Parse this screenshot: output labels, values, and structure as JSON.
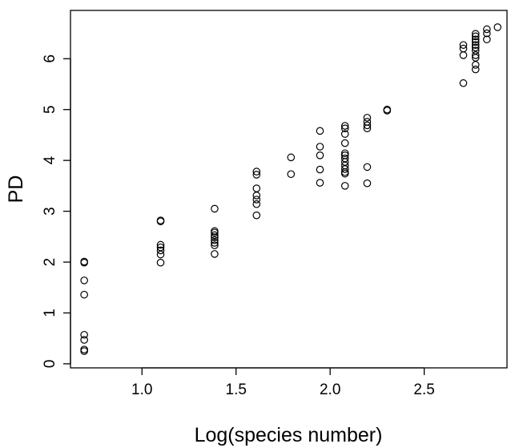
{
  "chart_data": {
    "type": "scatter",
    "title": "",
    "xlabel": "Log(species number)",
    "ylabel": "PD",
    "xlim": [
      0.62,
      2.94
    ],
    "ylim": [
      -0.08,
      6.95
    ],
    "xticks": [
      1.0,
      1.5,
      2.0,
      2.5
    ],
    "xtick_labels": [
      "1.0",
      "1.5",
      "2.0",
      "2.5"
    ],
    "yticks": [
      0,
      1,
      2,
      3,
      4,
      5,
      6
    ],
    "ytick_labels": [
      "0",
      "1",
      "2",
      "3",
      "4",
      "5",
      "6"
    ],
    "grid": false,
    "legend": "none",
    "marker": "open-circle",
    "colors": {
      "marker": "#000000",
      "axes": "#000000"
    },
    "series": [
      {
        "points": [
          [
            0.693,
            0.25
          ],
          [
            0.693,
            0.28
          ],
          [
            0.693,
            0.47
          ],
          [
            0.693,
            0.57
          ],
          [
            0.693,
            1.36
          ],
          [
            0.693,
            1.64
          ],
          [
            0.693,
            1.99
          ],
          [
            0.693,
            2.01
          ],
          [
            1.099,
            1.99
          ],
          [
            1.099,
            2.15
          ],
          [
            1.099,
            2.23
          ],
          [
            1.099,
            2.29
          ],
          [
            1.099,
            2.34
          ],
          [
            1.099,
            2.8
          ],
          [
            1.099,
            2.82
          ],
          [
            1.386,
            2.16
          ],
          [
            1.386,
            2.33
          ],
          [
            1.386,
            2.38
          ],
          [
            1.386,
            2.43
          ],
          [
            1.386,
            2.49
          ],
          [
            1.386,
            2.53
          ],
          [
            1.386,
            2.58
          ],
          [
            1.386,
            2.61
          ],
          [
            1.386,
            3.05
          ],
          [
            1.609,
            2.92
          ],
          [
            1.609,
            3.14
          ],
          [
            1.609,
            3.23
          ],
          [
            1.609,
            3.31
          ],
          [
            1.609,
            3.45
          ],
          [
            1.609,
            3.72
          ],
          [
            1.609,
            3.78
          ],
          [
            1.792,
            3.73
          ],
          [
            1.792,
            4.06
          ],
          [
            1.946,
            3.56
          ],
          [
            1.946,
            3.82
          ],
          [
            1.946,
            4.1
          ],
          [
            1.946,
            4.27
          ],
          [
            1.946,
            4.58
          ],
          [
            2.079,
            3.5
          ],
          [
            2.079,
            3.74
          ],
          [
            2.079,
            3.77
          ],
          [
            2.079,
            3.83
          ],
          [
            2.079,
            3.9
          ],
          [
            2.079,
            3.97
          ],
          [
            2.079,
            4.04
          ],
          [
            2.079,
            4.1
          ],
          [
            2.079,
            4.14
          ],
          [
            2.079,
            4.34
          ],
          [
            2.079,
            4.52
          ],
          [
            2.079,
            4.63
          ],
          [
            2.079,
            4.68
          ],
          [
            2.197,
            3.55
          ],
          [
            2.197,
            3.87
          ],
          [
            2.197,
            4.63
          ],
          [
            2.197,
            4.69
          ],
          [
            2.197,
            4.76
          ],
          [
            2.197,
            4.84
          ],
          [
            2.303,
            4.98
          ],
          [
            2.303,
            5.0
          ],
          [
            2.708,
            5.52
          ],
          [
            2.708,
            6.07
          ],
          [
            2.708,
            6.2
          ],
          [
            2.708,
            6.27
          ],
          [
            2.773,
            5.79
          ],
          [
            2.773,
            5.88
          ],
          [
            2.773,
            6.02
          ],
          [
            2.773,
            6.07
          ],
          [
            2.773,
            6.16
          ],
          [
            2.773,
            6.22
          ],
          [
            2.773,
            6.27
          ],
          [
            2.773,
            6.33
          ],
          [
            2.773,
            6.38
          ],
          [
            2.773,
            6.44
          ],
          [
            2.773,
            6.49
          ],
          [
            2.833,
            6.38
          ],
          [
            2.833,
            6.5
          ],
          [
            2.833,
            6.58
          ],
          [
            2.89,
            6.62
          ]
        ]
      }
    ]
  }
}
